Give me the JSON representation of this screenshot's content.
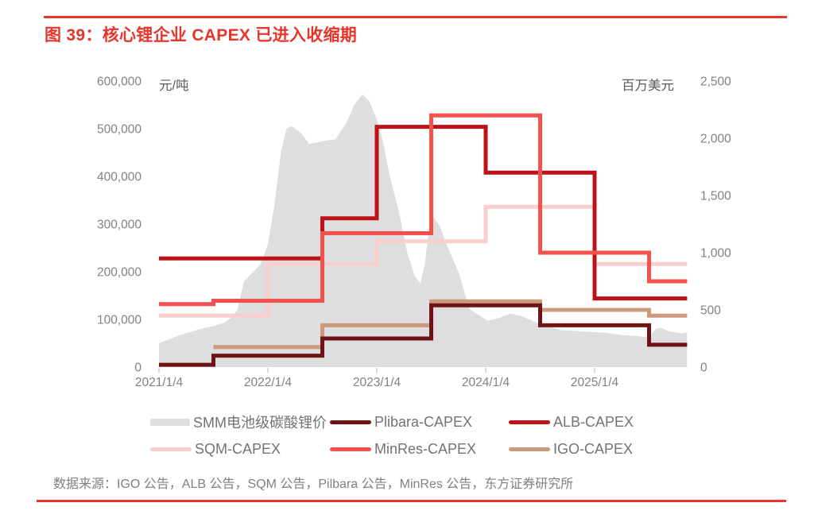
{
  "header": {
    "title": "图 39：核心锂企业 CAPEX 已进入收缩期"
  },
  "footer": {
    "source": "数据来源：IGO 公告，ALB 公告，SQM 公告，Pilbara 公告，MinRes 公告，东方证券研究所"
  },
  "colors": {
    "accent_red": "#E7352B",
    "price_area": "#DEDEDE",
    "plibara": "#701316",
    "alb": "#BC1218",
    "sqm": "#F9CFCB",
    "minres": "#F4514E",
    "igo": "#CB997B",
    "tick_text": "#828282",
    "unit_text": "#595959",
    "legend_text": "#737373",
    "source_text": "#7F7F7F",
    "tick_mark": "#B3B3B3"
  },
  "legend": {
    "items": [
      {
        "label": "SMM电池级碳酸锂价",
        "swatch": "area",
        "color": "#DEDEDE"
      },
      {
        "label": "Plibara-CAPEX",
        "swatch": "line",
        "color": "#701316"
      },
      {
        "label": "ALB-CAPEX",
        "swatch": "line",
        "color": "#BC1218"
      },
      {
        "label": "SQM-CAPEX",
        "swatch": "line",
        "color": "#F9CFCB"
      },
      {
        "label": "MinRes-CAPEX",
        "swatch": "line",
        "color": "#F4514E"
      },
      {
        "label": "IGO-CAPEX",
        "swatch": "line",
        "color": "#CB997B"
      }
    ]
  },
  "chart_data": {
    "type": "combo",
    "title": "核心锂企业 CAPEX 已进入收缩期",
    "grid": false,
    "legend_position": "bottom",
    "period_years": 0.5,
    "left_axis": {
      "label": "元/吨",
      "min": 0,
      "max": 600000,
      "tick_step": 100000,
      "tick_labels": [
        "600,000",
        "500,000",
        "400,000",
        "300,000",
        "200,000",
        "100,000",
        "0"
      ]
    },
    "right_axis": {
      "label": "百万美元",
      "min": 0,
      "max": 2500,
      "tick_step": 500,
      "tick_labels": [
        "2,500",
        "2,000",
        "1,500",
        "1,000",
        "500",
        "0"
      ]
    },
    "x_axis": {
      "tick_labels": [
        "2021/1/4",
        "2022/1/4",
        "2023/1/4",
        "2024/1/4",
        "2025/1/4"
      ],
      "span_years": 4.85
    },
    "price_area": {
      "name": "SMM电池级碳酸锂价",
      "axis": "left",
      "color": "#DEDEDE",
      "unit": "元/吨",
      "points": [
        [
          0.0,
          50000
        ],
        [
          0.08,
          57000
        ],
        [
          0.2,
          68000
        ],
        [
          0.35,
          78000
        ],
        [
          0.5,
          86000
        ],
        [
          0.6,
          93000
        ],
        [
          0.66,
          103000
        ],
        [
          0.72,
          120000
        ],
        [
          0.78,
          180000
        ],
        [
          0.85,
          196000
        ],
        [
          0.93,
          215000
        ],
        [
          1.0,
          258000
        ],
        [
          1.06,
          340000
        ],
        [
          1.12,
          450000
        ],
        [
          1.17,
          500000
        ],
        [
          1.22,
          505000
        ],
        [
          1.3,
          492000
        ],
        [
          1.38,
          468000
        ],
        [
          1.5,
          474000
        ],
        [
          1.62,
          478000
        ],
        [
          1.72,
          512000
        ],
        [
          1.8,
          553000
        ],
        [
          1.87,
          572000
        ],
        [
          1.93,
          558000
        ],
        [
          2.0,
          520000
        ],
        [
          2.05,
          480000
        ],
        [
          2.12,
          400000
        ],
        [
          2.2,
          330000
        ],
        [
          2.28,
          240000
        ],
        [
          2.35,
          190000
        ],
        [
          2.4,
          176000
        ],
        [
          2.44,
          215000
        ],
        [
          2.48,
          290000
        ],
        [
          2.52,
          315000
        ],
        [
          2.58,
          295000
        ],
        [
          2.65,
          252000
        ],
        [
          2.75,
          200000
        ],
        [
          2.85,
          122000
        ],
        [
          2.93,
          110000
        ],
        [
          3.02,
          97000
        ],
        [
          3.12,
          103000
        ],
        [
          3.22,
          112000
        ],
        [
          3.32,
          108000
        ],
        [
          3.45,
          95000
        ],
        [
          3.55,
          88000
        ],
        [
          3.68,
          78000
        ],
        [
          3.8,
          76000
        ],
        [
          3.95,
          74000
        ],
        [
          4.1,
          72000
        ],
        [
          4.25,
          67000
        ],
        [
          4.4,
          65000
        ],
        [
          4.5,
          62000
        ],
        [
          4.56,
          80000
        ],
        [
          4.6,
          83000
        ],
        [
          4.7,
          74000
        ],
        [
          4.8,
          71000
        ],
        [
          4.85,
          73000
        ]
      ]
    },
    "capex_series": [
      {
        "name": "Plibara-CAPEX",
        "color": "#701316",
        "axis": "right",
        "unit": "百万美元",
        "start_period": 0,
        "periods": [
          "2021H1",
          "2021H2",
          "2022H1",
          "2022H2",
          "2023H1",
          "2023H2",
          "2024H1",
          "2024H2",
          "2025H1",
          "2025H2"
        ],
        "values": [
          20,
          100,
          100,
          250,
          250,
          540,
          540,
          365,
          365,
          195
        ]
      },
      {
        "name": "ALB-CAPEX",
        "color": "#BC1218",
        "axis": "right",
        "unit": "百万美元",
        "start_period": 0,
        "periods": [
          "2021H1",
          "2021H2",
          "2022H1",
          "2022H2",
          "2023H1",
          "2023H2",
          "2024H1",
          "2024H2",
          "2025H1",
          "2025H2"
        ],
        "values": [
          950,
          950,
          950,
          1300,
          2100,
          2100,
          1700,
          1700,
          600,
          600
        ]
      },
      {
        "name": "SQM-CAPEX",
        "color": "#F9CFCB",
        "axis": "right",
        "unit": "百万美元",
        "start_period": 0,
        "periods": [
          "2021H1",
          "2021H2",
          "2022H1",
          "2022H2",
          "2023H1",
          "2023H2",
          "2024H1",
          "2024H2",
          "2025H1",
          "2025H2"
        ],
        "values": [
          450,
          450,
          900,
          900,
          1100,
          1100,
          1400,
          1400,
          900,
          900
        ]
      },
      {
        "name": "MinRes-CAPEX",
        "color": "#F4514E",
        "axis": "right",
        "unit": "百万美元",
        "start_period": 0,
        "periods": [
          "2021H1",
          "2021H2",
          "2022H1",
          "2022H2",
          "2023H1",
          "2023H2",
          "2024H1",
          "2024H2",
          "2025H1",
          "2025H2"
        ],
        "values": [
          550,
          580,
          580,
          1170,
          1170,
          2200,
          2200,
          1000,
          1000,
          750
        ]
      },
      {
        "name": "IGO-CAPEX",
        "color": "#CB997B",
        "axis": "right",
        "unit": "百万美元",
        "start_period": 1,
        "periods": [
          "2021H2",
          "2022H1",
          "2022H2",
          "2023H1",
          "2023H2",
          "2024H1",
          "2024H2",
          "2025H1",
          "2025H2"
        ],
        "values": [
          175,
          175,
          365,
          365,
          575,
          575,
          500,
          500,
          450
        ]
      }
    ],
    "draw_order": [
      "SQM-CAPEX",
      "IGO-CAPEX",
      "Plibara-CAPEX",
      "ALB-CAPEX",
      "MinRes-CAPEX"
    ]
  }
}
